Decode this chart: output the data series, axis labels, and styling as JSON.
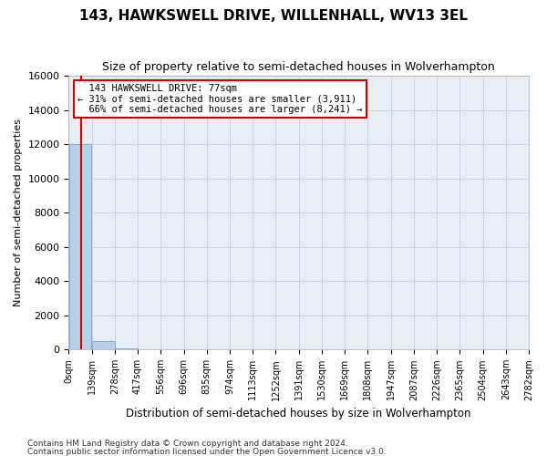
{
  "title": "143, HAWKSWELL DRIVE, WILLENHALL, WV13 3EL",
  "subtitle": "Size of property relative to semi-detached houses in Wolverhampton",
  "xlabel": "Distribution of semi-detached houses by size in Wolverhampton",
  "ylabel": "Number of semi-detached properties",
  "footnote1": "Contains HM Land Registry data © Crown copyright and database right 2024.",
  "footnote2": "Contains public sector information licensed under the Open Government Licence v3.0.",
  "property_size": 77,
  "property_label": "143 HAWKSWELL DRIVE: 77sqm",
  "pct_smaller": 31,
  "pct_larger": 66,
  "n_smaller": 3911,
  "n_larger": 8241,
  "bin_edges": [
    0,
    139,
    278,
    417,
    556,
    696,
    835,
    974,
    1113,
    1252,
    1391,
    1530,
    1669,
    1808,
    1947,
    2087,
    2226,
    2365,
    2504,
    2643,
    2782
  ],
  "bin_counts": [
    12000,
    500,
    60,
    25,
    15,
    10,
    8,
    5,
    4,
    3,
    3,
    2,
    2,
    2,
    1,
    1,
    1,
    1,
    1,
    1
  ],
  "bar_color": "#b8d0e8",
  "bar_edge_color": "#6699cc",
  "property_line_color": "#cc0000",
  "annotation_box_color": "#cc0000",
  "grid_color": "#c8d4e4",
  "bg_color": "#e8eef6",
  "ylim": [
    0,
    16000
  ],
  "yticks": [
    0,
    2000,
    4000,
    6000,
    8000,
    10000,
    12000,
    14000,
    16000
  ]
}
